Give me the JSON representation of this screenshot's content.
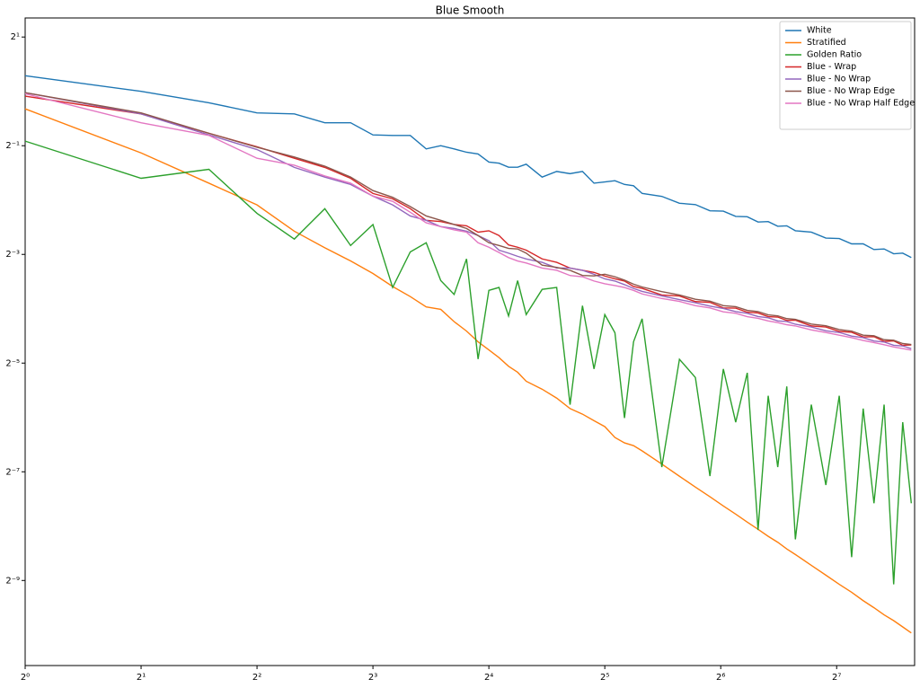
{
  "chart_data": {
    "type": "line",
    "title": "Blue Smooth",
    "xscale": "log2",
    "yscale": "log2",
    "legend": "upper right",
    "xlim": [
      1,
      204
    ],
    "ylim": [
      0.00066,
      2.55
    ],
    "xticks": [
      {
        "value": 1,
        "label": "2⁰"
      },
      {
        "value": 2,
        "label": "2¹"
      },
      {
        "value": 4,
        "label": "2²"
      },
      {
        "value": 8,
        "label": "2³"
      },
      {
        "value": 16,
        "label": "2⁴"
      },
      {
        "value": 32,
        "label": "2⁵"
      },
      {
        "value": 64,
        "label": "2⁶"
      },
      {
        "value": 128,
        "label": "2⁷"
      }
    ],
    "yticks": [
      {
        "value": 2,
        "label": "2¹"
      },
      {
        "value": 0.5,
        "label": "2⁻¹"
      },
      {
        "value": 0.125,
        "label": "2⁻³"
      },
      {
        "value": 0.03125,
        "label": "2⁻⁵"
      },
      {
        "value": 0.0078125,
        "label": "2⁻⁷"
      },
      {
        "value": 0.001953125,
        "label": "2⁻⁹"
      }
    ],
    "x": [
      1,
      2,
      3,
      4,
      5,
      6,
      7,
      8,
      9,
      10,
      11,
      12,
      13,
      14,
      15,
      16,
      17,
      18,
      19,
      20,
      22,
      24,
      26,
      28,
      30,
      32,
      34,
      36,
      38,
      40,
      45,
      50,
      55,
      60,
      65,
      70,
      75,
      80,
      85,
      90,
      95,
      100,
      110,
      120,
      130,
      140,
      150,
      160,
      170,
      180,
      190,
      200
    ],
    "series": [
      {
        "name": "White",
        "color": "#1f77b4",
        "values": [
          1.22,
          1.0,
          0.865,
          0.76,
          0.75,
          0.67,
          0.67,
          0.574,
          0.57,
          0.57,
          0.48,
          0.5,
          0.48,
          0.46,
          0.45,
          0.406,
          0.4,
          0.38,
          0.38,
          0.395,
          0.335,
          0.36,
          0.35,
          0.36,
          0.31,
          0.315,
          0.32,
          0.305,
          0.3,
          0.272,
          0.262,
          0.24,
          0.236,
          0.218,
          0.217,
          0.203,
          0.202,
          0.189,
          0.19,
          0.179,
          0.18,
          0.169,
          0.166,
          0.154,
          0.153,
          0.143,
          0.143,
          0.133,
          0.134,
          0.126,
          0.127,
          0.12
        ]
      },
      {
        "name": "Stratified",
        "color": "#ff7f0e",
        "values": [
          0.8,
          0.456,
          0.31,
          0.235,
          0.168,
          0.136,
          0.115,
          0.098,
          0.083,
          0.073,
          0.064,
          0.062,
          0.053,
          0.047,
          0.041,
          0.037,
          0.0335,
          0.03,
          0.0278,
          0.0248,
          0.0224,
          0.02,
          0.0175,
          0.0163,
          0.015,
          0.0139,
          0.0121,
          0.0113,
          0.0109,
          0.0102,
          0.00862,
          0.00738,
          0.00643,
          0.00568,
          0.00505,
          0.00455,
          0.00411,
          0.00375,
          0.00343,
          0.00318,
          0.00292,
          0.00272,
          0.00237,
          0.00209,
          0.00186,
          0.00168,
          0.00151,
          0.00138,
          0.00126,
          0.00117,
          0.00108,
          0.001
        ]
      },
      {
        "name": "Golden Ratio",
        "color": "#2ca02c",
        "values": [
          0.53,
          0.33,
          0.37,
          0.211,
          0.152,
          0.224,
          0.14,
          0.183,
          0.082,
          0.129,
          0.145,
          0.0895,
          0.075,
          0.118,
          0.0329,
          0.079,
          0.082,
          0.057,
          0.0895,
          0.058,
          0.08,
          0.082,
          0.0184,
          0.065,
          0.029,
          0.058,
          0.046,
          0.0155,
          0.041,
          0.055,
          0.0083,
          0.0328,
          0.026,
          0.0074,
          0.029,
          0.0147,
          0.0276,
          0.00372,
          0.0206,
          0.0083,
          0.0232,
          0.0033,
          0.0184,
          0.0066,
          0.0206,
          0.00263,
          0.0175,
          0.00523,
          0.0184,
          0.00186,
          0.0147,
          0.00523
        ]
      },
      {
        "name": "Blue - Wrap",
        "color": "#d62728",
        "values": [
          0.94,
          0.75,
          0.586,
          0.493,
          0.426,
          0.379,
          0.33,
          0.272,
          0.254,
          0.224,
          0.193,
          0.19,
          0.183,
          0.18,
          0.166,
          0.169,
          0.159,
          0.141,
          0.137,
          0.132,
          0.118,
          0.113,
          0.105,
          0.102,
          0.0994,
          0.0948,
          0.0915,
          0.089,
          0.083,
          0.081,
          0.0745,
          0.0735,
          0.0685,
          0.0678,
          0.0632,
          0.063,
          0.0598,
          0.0592,
          0.0565,
          0.0562,
          0.0538,
          0.054,
          0.0502,
          0.0495,
          0.0468,
          0.0463,
          0.0436,
          0.0438,
          0.0412,
          0.0415,
          0.0392,
          0.0394
        ]
      },
      {
        "name": "Blue - No Wrap",
        "color": "#9467bd",
        "values": [
          0.983,
          0.75,
          0.574,
          0.476,
          0.379,
          0.335,
          0.305,
          0.263,
          0.235,
          0.204,
          0.193,
          0.178,
          0.174,
          0.168,
          0.159,
          0.149,
          0.132,
          0.127,
          0.122,
          0.118,
          0.113,
          0.105,
          0.105,
          0.102,
          0.097,
          0.0915,
          0.089,
          0.085,
          0.081,
          0.078,
          0.0736,
          0.0702,
          0.0675,
          0.0646,
          0.0627,
          0.0603,
          0.059,
          0.0566,
          0.0557,
          0.0535,
          0.0531,
          0.0513,
          0.0495,
          0.0472,
          0.0462,
          0.0441,
          0.0432,
          0.0414,
          0.0409,
          0.0392,
          0.0389,
          0.0376
        ]
      },
      {
        "name": "Blue - No Wrap Edge",
        "color": "#8c564b",
        "values": [
          0.983,
          0.76,
          0.586,
          0.49,
          0.433,
          0.385,
          0.335,
          0.282,
          0.259,
          0.23,
          0.204,
          0.193,
          0.183,
          0.174,
          0.159,
          0.145,
          0.14,
          0.135,
          0.134,
          0.127,
          0.109,
          0.106,
          0.102,
          0.0956,
          0.095,
          0.097,
          0.094,
          0.09,
          0.0855,
          0.0825,
          0.0778,
          0.0745,
          0.0705,
          0.0688,
          0.065,
          0.0642,
          0.0612,
          0.0603,
          0.0578,
          0.0571,
          0.0551,
          0.0546,
          0.0514,
          0.0503,
          0.0479,
          0.047,
          0.0446,
          0.0443,
          0.0421,
          0.0418,
          0.0401,
          0.0396
        ]
      },
      {
        "name": "Blue - No Wrap Half Edge",
        "color": "#e377c2",
        "values": [
          0.97,
          0.67,
          0.57,
          0.426,
          0.39,
          0.34,
          0.31,
          0.263,
          0.246,
          0.214,
          0.187,
          0.178,
          0.171,
          0.166,
          0.145,
          0.137,
          0.128,
          0.12,
          0.115,
          0.112,
          0.105,
          0.102,
          0.0955,
          0.094,
          0.089,
          0.086,
          0.084,
          0.082,
          0.079,
          0.0755,
          0.0712,
          0.0686,
          0.065,
          0.0632,
          0.0601,
          0.059,
          0.0565,
          0.0553,
          0.0535,
          0.0524,
          0.051,
          0.0502,
          0.0477,
          0.0462,
          0.0446,
          0.0432,
          0.0417,
          0.0406,
          0.0395,
          0.0384,
          0.0376,
          0.0369
        ]
      }
    ]
  }
}
